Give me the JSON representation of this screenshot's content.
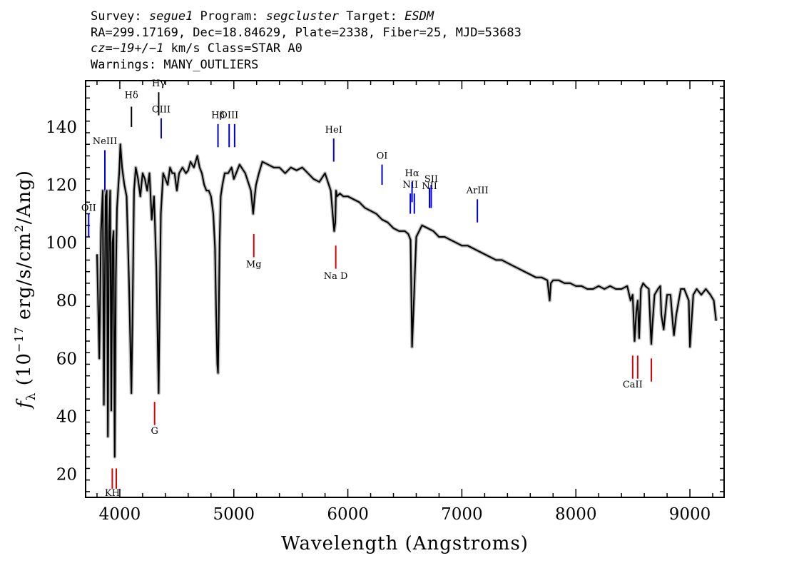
{
  "header": {
    "line1": {
      "survey_label": "Survey: ",
      "survey": "segue1",
      "program_label": " Program: ",
      "program": "segcluster",
      "target_label": " Target: ",
      "target": "ESDM"
    },
    "line2": "RA=299.17169, Dec=18.84629, Plate=2338, Fiber=25, MJD=53683",
    "line3": {
      "cz_label": "cz=",
      "cz": "−19+/−1",
      "rest": " km/s Class=STAR A0"
    },
    "line4": "Warnings: MANY_OUTLIERS"
  },
  "colors": {
    "emission": "#0000dd",
    "absorption": "#dd0000",
    "balmer": "#000000",
    "spectrum": "#000000",
    "error_band": "#b8b8b8"
  },
  "chart_data": {
    "type": "line",
    "title": "",
    "xlabel": "Wavelength (Angstroms)",
    "ylabel_main": "f",
    "ylabel_sub": "λ",
    "ylabel_rest": " (10",
    "ylabel_exp": "−17",
    "ylabel_rest2": " erg/s/cm",
    "ylabel_exp2": "2",
    "ylabel_rest3": "/Ang)",
    "xlim": [
      3700,
      9300
    ],
    "ylim": [
      12,
      156
    ],
    "xticks": [
      4000,
      5000,
      6000,
      7000,
      8000,
      9000
    ],
    "yticks": [
      20,
      40,
      60,
      80,
      100,
      120,
      140
    ],
    "grid": false,
    "legend": "none",
    "series": [
      {
        "x": [
          3800,
          3820,
          3835,
          3850,
          3860,
          3875,
          3885,
          3895,
          3905,
          3915,
          3925,
          3935,
          3945,
          3955,
          3965,
          3975,
          3985,
          3995,
          4005,
          4020,
          4040,
          4060,
          4080,
          4095,
          4102,
          4110,
          4125,
          4140,
          4160,
          4180,
          4200,
          4220,
          4240,
          4260,
          4280,
          4300,
          4320,
          4335,
          4341,
          4348,
          4360,
          4380,
          4400,
          4420,
          4440,
          4460,
          4480,
          4500,
          4520,
          4550,
          4580,
          4600,
          4620,
          4650,
          4680,
          4700,
          4720,
          4740,
          4760,
          4780,
          4800,
          4820,
          4835,
          4845,
          4855,
          4861,
          4867,
          4875,
          4885,
          4900,
          4920,
          4950,
          4980,
          5000,
          5050,
          5100,
          5150,
          5170,
          5183,
          5195,
          5220,
          5250,
          5300,
          5350,
          5400,
          5450,
          5500,
          5550,
          5600,
          5650,
          5700,
          5750,
          5800,
          5850,
          5880,
          5890,
          5896,
          5905,
          5930,
          5960,
          6000,
          6050,
          6100,
          6150,
          6200,
          6250,
          6300,
          6350,
          6400,
          6450,
          6500,
          6530,
          6550,
          6563,
          6575,
          6600,
          6650,
          6700,
          6750,
          6800,
          6850,
          6900,
          6950,
          7000,
          7050,
          7100,
          7150,
          7200,
          7250,
          7300,
          7350,
          7400,
          7450,
          7500,
          7550,
          7600,
          7650,
          7700,
          7750,
          7770,
          7780,
          7800,
          7850,
          7900,
          7950,
          8000,
          8050,
          8100,
          8150,
          8200,
          8250,
          8300,
          8350,
          8400,
          8450,
          8480,
          8498,
          8515,
          8530,
          8542,
          8555,
          8570,
          8590,
          8610,
          8640,
          8655,
          8662,
          8670,
          8690,
          8720,
          8740,
          8750,
          8770,
          8800,
          8830,
          8850,
          8860,
          8880,
          8920,
          8950,
          8990,
          9000,
          9010,
          9030,
          9060,
          9100,
          9140,
          9180,
          9210,
          9230
        ],
        "y": [
          96,
          60,
          104,
          118,
          44,
          116,
          118,
          33,
          104,
          118,
          42,
          100,
          104,
          26,
          88,
          112,
          118,
          124,
          134,
          126,
          120,
          116,
          88,
          60,
          48,
          70,
          118,
          126,
          122,
          116,
          124,
          122,
          118,
          124,
          108,
          116,
          92,
          60,
          48,
          75,
          110,
          124,
          122,
          120,
          126,
          124,
          124,
          118,
          124,
          126,
          124,
          125,
          128,
          126,
          130,
          126,
          124,
          120,
          118,
          118,
          116,
          110,
          98,
          76,
          58,
          55,
          70,
          100,
          116,
          120,
          124,
          124,
          126,
          122,
          127,
          124,
          118,
          110,
          116,
          120,
          124,
          128,
          127,
          126,
          126,
          124,
          126,
          125,
          126,
          124,
          122,
          121,
          124,
          118,
          104,
          107,
          118,
          116,
          117,
          116,
          116,
          115,
          114,
          112,
          111,
          110,
          108,
          107,
          105,
          104,
          104,
          103,
          101,
          64,
          76,
          102,
          106,
          105,
          104,
          102,
          102,
          101,
          100,
          99,
          99,
          98,
          97,
          96,
          95,
          94,
          94,
          93,
          92,
          91,
          90,
          89,
          88,
          88,
          87,
          80,
          86,
          87,
          87,
          86,
          86,
          85,
          85,
          84,
          84,
          85,
          84,
          85,
          84,
          84,
          85,
          80,
          82,
          66,
          76,
          80,
          67,
          84,
          86,
          85,
          84,
          70,
          65,
          71,
          82,
          84,
          85,
          75,
          70,
          82,
          82,
          72,
          68,
          75,
          84,
          84,
          80,
          64,
          70,
          82,
          84,
          82,
          84,
          82,
          80,
          73
        ]
      }
    ],
    "line_markers": [
      {
        "label": "NeIII",
        "wave": 3869,
        "y_lo": 116,
        "y_hi": 132,
        "label_y": 134,
        "kind": "emission"
      },
      {
        "label": "OII",
        "wave": 3727,
        "y_lo": 102,
        "y_hi": 110,
        "label_y": 111,
        "kind": "emission"
      },
      {
        "label": "Hδ",
        "wave": 4102,
        "y_lo": 140,
        "y_hi": 147,
        "label_y": 150,
        "kind": "balmer"
      },
      {
        "label": "Hγ",
        "wave": 4341,
        "y_lo": 144,
        "y_hi": 152,
        "label_y": 154,
        "kind": "balmer"
      },
      {
        "label": "OIII",
        "wave": 4363,
        "y_lo": 136,
        "y_hi": 143,
        "label_y": 145,
        "kind": "emission"
      },
      {
        "label": "Hβ",
        "wave": 4861,
        "y_lo": 133,
        "y_hi": 141,
        "label_y": 143,
        "kind": "emission"
      },
      {
        "label": "OIII",
        "wave": 4959,
        "y_lo": 133,
        "y_hi": 141,
        "label_y": 143,
        "kind": "emission"
      },
      {
        "label": "",
        "wave": 5007,
        "y_lo": 133,
        "y_hi": 141,
        "label_y": 143,
        "kind": "emission"
      },
      {
        "label": "HeI",
        "wave": 5876,
        "y_lo": 128,
        "y_hi": 136,
        "label_y": 138,
        "kind": "emission"
      },
      {
        "label": "OI",
        "wave": 6300,
        "y_lo": 120,
        "y_hi": 127,
        "label_y": 129,
        "kind": "emission"
      },
      {
        "label": "NII",
        "wave": 6548,
        "y_lo": 110,
        "y_hi": 117,
        "label_y": 119,
        "kind": "emission"
      },
      {
        "label": "Hα",
        "wave": 6563,
        "y_lo": 114,
        "y_hi": 121,
        "label_y": 123,
        "kind": "emission"
      },
      {
        "label": "",
        "wave": 6583,
        "y_lo": 110,
        "y_hi": 117,
        "label_y": 119,
        "kind": "emission"
      },
      {
        "label": "NII",
        "wave": 6716,
        "y_lo": 112,
        "y_hi": 119,
        "label_y": 118.5,
        "kind": "emission"
      },
      {
        "label": "SII",
        "wave": 6731,
        "y_lo": 112,
        "y_hi": 120,
        "label_y": 121,
        "kind": "emission"
      },
      {
        "label": "ArIII",
        "wave": 7136,
        "y_lo": 107,
        "y_hi": 115,
        "label_y": 117,
        "kind": "emission"
      },
      {
        "label": "KH",
        "wave": 3934,
        "y_lo": 15,
        "y_hi": 22,
        "label_y": 12.5,
        "kind": "absorption"
      },
      {
        "label": "",
        "wave": 3969,
        "y_lo": 15,
        "y_hi": 22,
        "label_y": 12.5,
        "kind": "absorption"
      },
      {
        "label": "G",
        "wave": 4305,
        "y_lo": 37,
        "y_hi": 45,
        "label_y": 34,
        "kind": "absorption"
      },
      {
        "label": "Mg",
        "wave": 5175,
        "y_lo": 95,
        "y_hi": 103,
        "label_y": 91.5,
        "kind": "absorption"
      },
      {
        "label": "Na D",
        "wave": 5894,
        "y_lo": 91,
        "y_hi": 99,
        "label_y": 87.5,
        "kind": "absorption"
      },
      {
        "label": "CaII",
        "wave": 8498,
        "y_lo": 53,
        "y_hi": 61,
        "label_y": 50,
        "kind": "absorption"
      },
      {
        "label": "",
        "wave": 8542,
        "y_lo": 53,
        "y_hi": 61,
        "label_y": 50,
        "kind": "absorption"
      },
      {
        "label": "",
        "wave": 8662,
        "y_lo": 52,
        "y_hi": 60,
        "label_y": 50,
        "kind": "absorption"
      }
    ]
  }
}
